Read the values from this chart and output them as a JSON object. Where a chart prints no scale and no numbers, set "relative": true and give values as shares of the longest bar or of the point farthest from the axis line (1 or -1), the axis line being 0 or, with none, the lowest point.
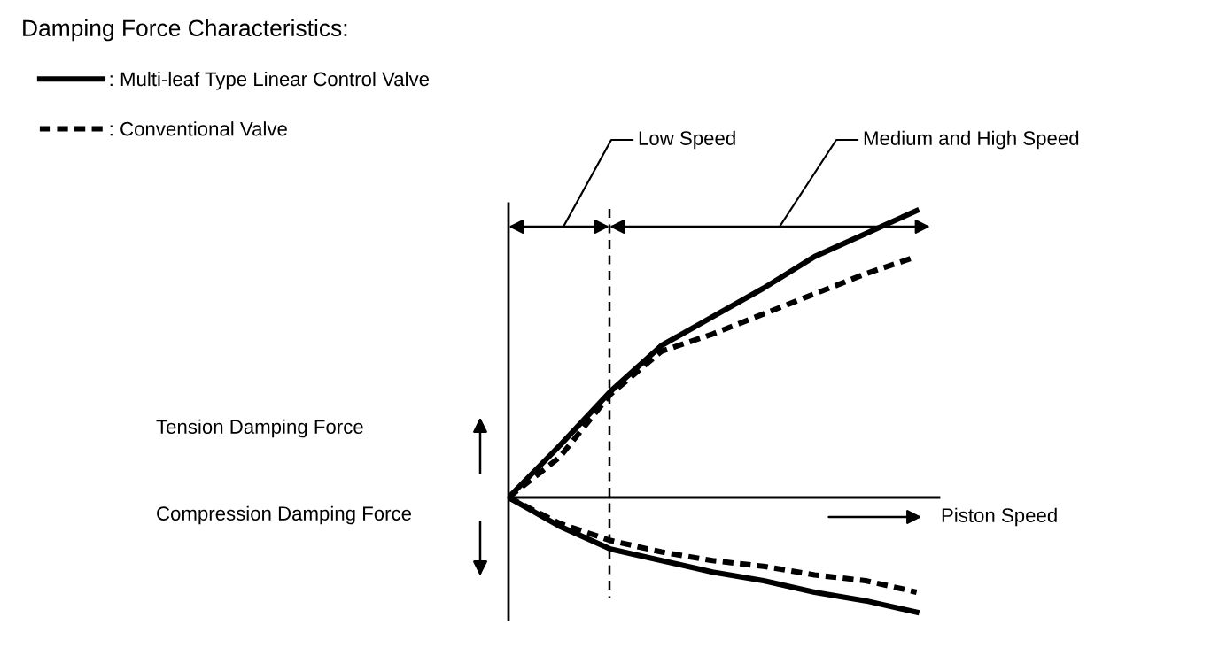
{
  "chart_data": {
    "type": "line",
    "relative": true,
    "title": "Damping Force Characteristics:",
    "xlabel": "Piston Speed",
    "annotations": [
      "Tension Damping Force",
      "Compression Damping Force",
      "Low Speed",
      "Medium and High Speed"
    ],
    "categories": [
      null,
      null,
      null,
      null,
      null,
      null,
      null,
      null,
      null
    ],
    "series": [
      {
        "name": ": Multi-leaf Type Linear Control Valve",
        "color": "#000000",
        "line_style": "solid",
        "values": [
          0,
          0.18,
          0.37,
          0.53,
          0.63,
          0.73,
          0.84,
          0.92,
          1.0
        ]
      },
      {
        "name": ": Conventional Valve",
        "color": "#000000",
        "line_style": "dotted",
        "values": [
          0,
          0.14,
          0.36,
          0.51,
          0.57,
          0.64,
          0.71,
          0.78,
          0.84
        ]
      },
      {
        "color": "#000000",
        "line_style": "solid",
        "values": [
          0,
          -0.1,
          -0.18,
          -0.22,
          -0.26,
          -0.29,
          -0.33,
          -0.36,
          -0.4
        ]
      },
      {
        "color": "#000000",
        "line_style": "dotted",
        "values": [
          0,
          -0.09,
          -0.15,
          -0.19,
          -0.22,
          -0.24,
          -0.27,
          -0.29,
          -0.33
        ]
      }
    ],
    "legend": "top left",
    "marker": "none"
  }
}
